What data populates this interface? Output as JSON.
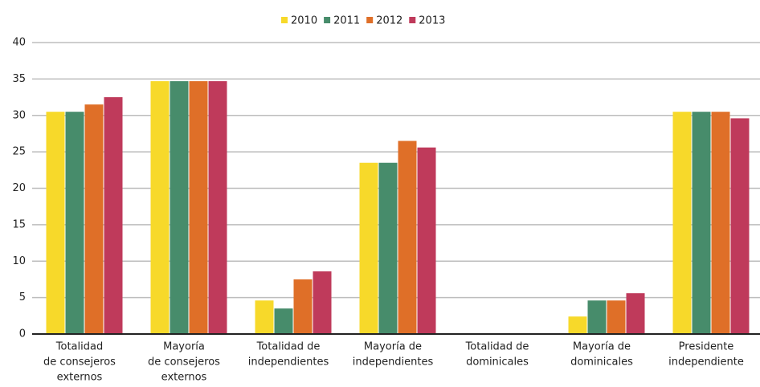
{
  "chart_data": {
    "type": "bar",
    "categories": [
      [
        "Totalidad",
        "de consejeros",
        "externos"
      ],
      [
        "Mayoría",
        "de consejeros",
        "externos"
      ],
      [
        "Totalidad de",
        "independientes"
      ],
      [
        "Mayoría de",
        "independientes"
      ],
      [
        "Totalidad de",
        "dominicales"
      ],
      [
        "Mayoría de",
        "dominicales"
      ],
      [
        "Presidente",
        "independiente"
      ]
    ],
    "series": [
      {
        "name": "2010",
        "color": "#f7d92a",
        "values": [
          30.5,
          34.7,
          4.6,
          23.5,
          0,
          2.4,
          30.5
        ]
      },
      {
        "name": "2011",
        "color": "#478c6b",
        "values": [
          30.5,
          34.7,
          3.5,
          23.5,
          0,
          4.6,
          30.5
        ]
      },
      {
        "name": "2012",
        "color": "#df6f28",
        "values": [
          31.5,
          34.7,
          7.5,
          26.5,
          0,
          4.6,
          30.5
        ]
      },
      {
        "name": "2013",
        "color": "#bf3a5b",
        "values": [
          32.5,
          34.7,
          8.6,
          25.6,
          0,
          5.6,
          29.6
        ]
      }
    ],
    "ylim": [
      0,
      40
    ],
    "yticks": [
      0,
      5,
      10,
      15,
      20,
      25,
      30,
      35,
      40
    ],
    "grid": true,
    "legend": "top"
  }
}
